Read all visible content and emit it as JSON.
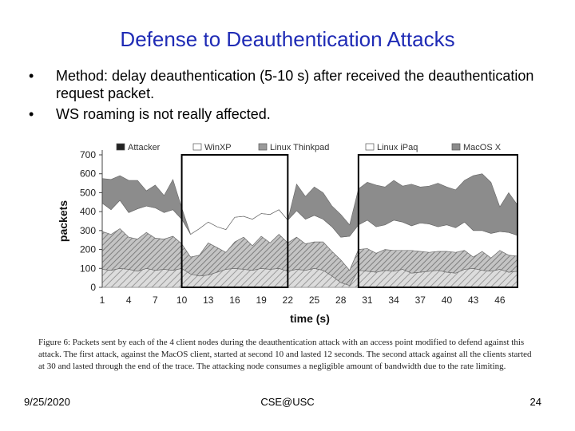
{
  "slide": {
    "title": "Defense to Deauthentication Attacks",
    "bullets": [
      "Method: delay deauthentication (5-10 s) after received the deauthentication request packet.",
      "WS roaming is not really affected."
    ],
    "caption": "Figure 6: Packets sent by each of the 4 client nodes during the deauthentication attack with an access point modified to defend against this attack. The first attack, against the MacOS client, started at second 10 and lasted 12 seconds. The second attack against all the clients started at 30 and lasted through the end of the trace. The attacking node consumes a negligible amount of bandwidth due to the rate limiting.",
    "footer": {
      "date": "9/25/2020",
      "center": "CSE@USC",
      "page": "24"
    }
  },
  "chart_data": {
    "type": "area",
    "xlabel": "time (s)",
    "ylabel": "packets",
    "ylim": [
      0,
      700
    ],
    "xlim": [
      1,
      48
    ],
    "yticks": [
      0,
      100,
      200,
      300,
      400,
      500,
      600,
      700
    ],
    "xticks": [
      1,
      4,
      7,
      10,
      13,
      16,
      19,
      22,
      25,
      28,
      31,
      34,
      37,
      40,
      43,
      46
    ],
    "legend": [
      "Attacker",
      "WinXP",
      "Linux Thinkpad",
      "Linux iPaq",
      "MacOS X"
    ],
    "legend_position": "top",
    "highlight_ranges": [
      [
        10,
        22
      ],
      [
        30,
        48
      ]
    ],
    "x": [
      1,
      2,
      3,
      4,
      5,
      6,
      7,
      8,
      9,
      10,
      11,
      12,
      13,
      14,
      15,
      16,
      17,
      18,
      19,
      20,
      21,
      22,
      23,
      24,
      25,
      26,
      27,
      28,
      29,
      30,
      31,
      32,
      33,
      34,
      35,
      36,
      37,
      38,
      39,
      40,
      41,
      42,
      43,
      44,
      45,
      46,
      47,
      48
    ],
    "series": [
      {
        "name": "Attacker",
        "color": "#222222",
        "values": [
          0,
          0,
          0,
          0,
          0,
          0,
          0,
          0,
          0,
          0,
          0,
          0,
          0,
          0,
          0,
          0,
          0,
          0,
          0,
          0,
          0,
          0,
          0,
          0,
          0,
          0,
          0,
          0,
          0,
          0,
          0,
          0,
          0,
          0,
          0,
          0,
          0,
          0,
          0,
          0,
          0,
          0,
          0,
          0,
          0,
          0,
          0,
          0
        ]
      },
      {
        "name": "WinXP",
        "color": "#ffffff",
        "values": [
          95,
          90,
          100,
          95,
          85,
          100,
          90,
          95,
          90,
          100,
          70,
          60,
          65,
          80,
          95,
          100,
          95,
          90,
          100,
          95,
          100,
          85,
          95,
          90,
          100,
          90,
          60,
          25,
          10,
          90,
          85,
          80,
          90,
          85,
          95,
          75,
          80,
          85,
          90,
          80,
          75,
          95,
          100,
          90,
          85,
          95,
          80,
          85
        ]
      },
      {
        "name": "Linux Thinkpad",
        "color": "#b0b0b0",
        "values": [
          200,
          190,
          210,
          170,
          170,
          190,
          170,
          160,
          180,
          130,
          90,
          110,
          170,
          130,
          90,
          140,
          170,
          130,
          170,
          140,
          180,
          150,
          170,
          140,
          140,
          150,
          130,
          120,
          80,
          110,
          120,
          100,
          110,
          110,
          100,
          120,
          110,
          100,
          100,
          110,
          110,
          100,
          60,
          100,
          70,
          100,
          90,
          80
        ]
      },
      {
        "name": "Linux iPaq",
        "color": "#ffffff",
        "values": [
          150,
          130,
          150,
          130,
          160,
          140,
          160,
          140,
          140,
          130,
          120,
          140,
          110,
          110,
          120,
          130,
          110,
          140,
          120,
          150,
          130,
          120,
          140,
          130,
          140,
          120,
          130,
          120,
          180,
          130,
          150,
          140,
          130,
          160,
          150,
          130,
          150,
          150,
          130,
          140,
          130,
          150,
          140,
          110,
          130,
          100,
          120,
          110
        ]
      },
      {
        "name": "MacOS X",
        "color": "#8c8c8c",
        "values": [
          130,
          160,
          130,
          170,
          150,
          80,
          120,
          90,
          160,
          60,
          0,
          0,
          0,
          0,
          0,
          0,
          0,
          0,
          0,
          0,
          0,
          0,
          140,
          120,
          150,
          140,
          110,
          120,
          60,
          190,
          200,
          220,
          200,
          210,
          190,
          220,
          190,
          200,
          230,
          200,
          200,
          220,
          290,
          300,
          270,
          130,
          210,
          160
        ]
      }
    ]
  }
}
